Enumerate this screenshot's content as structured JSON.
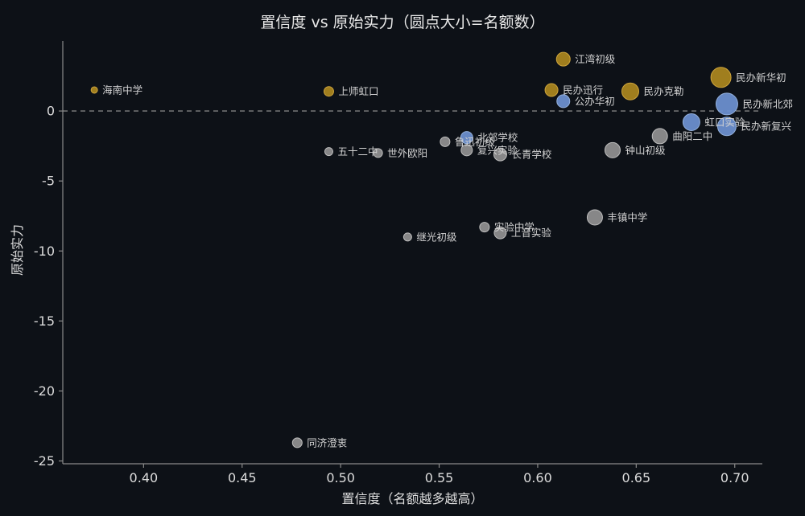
{
  "chart_data": {
    "type": "scatter",
    "title": "置信度 vs 原始实力（圆点大小=名额数）",
    "xlabel": "置信度（名额越多越高）",
    "ylabel": "原始实力",
    "xlim": [
      0.359,
      0.714
    ],
    "ylim": [
      -25.2,
      5.0
    ],
    "xticks": [
      0.4,
      0.45,
      0.5,
      0.55,
      0.6,
      0.65,
      0.7
    ],
    "xtick_labels": [
      "0.40",
      "0.45",
      "0.50",
      "0.55",
      "0.60",
      "0.65",
      "0.70"
    ],
    "yticks": [
      0,
      -5,
      -10,
      -15,
      -20,
      -25
    ],
    "ytick_labels": [
      "0",
      "-5",
      "-10",
      "-15",
      "-20",
      "-25"
    ],
    "grid": false,
    "hline": {
      "y": 0,
      "style": "dashed"
    },
    "legend": "none",
    "size_encoding": "circle size = quota count (名额数)",
    "colors": {
      "background": "#0d1117",
      "axis": "#8a8a8a",
      "tick_text": "#dcdcdc",
      "title_text": "#e9e9e9",
      "point_label_text": "#d2d2d2",
      "dashed_line": "#9a9a9a",
      "gold": "#a9851f",
      "gold_edge": "#cfa53c",
      "blue": "#6b8fce",
      "blue_edge": "#93b0dc",
      "gray": "#8e8e8e",
      "gray_edge": "#bdbdbd"
    },
    "points": [
      {
        "name": "海南中学",
        "x": 0.375,
        "y": 1.5,
        "r": 4,
        "color": "gold"
      },
      {
        "name": "上师虹口",
        "x": 0.494,
        "y": 1.4,
        "r": 6,
        "color": "gold"
      },
      {
        "name": "江湾初级",
        "x": 0.613,
        "y": 3.7,
        "r": 8.5,
        "color": "gold"
      },
      {
        "name": "民办迅行",
        "x": 0.607,
        "y": 1.5,
        "r": 8,
        "color": "gold"
      },
      {
        "name": "公办华初",
        "x": 0.613,
        "y": 0.7,
        "r": 8,
        "color": "blue"
      },
      {
        "name": "民办克勒",
        "x": 0.647,
        "y": 1.4,
        "r": 10.5,
        "color": "gold"
      },
      {
        "name": "民办新华初",
        "x": 0.693,
        "y": 2.4,
        "r": 12.5,
        "color": "gold"
      },
      {
        "name": "民办新北郊",
        "x": 0.696,
        "y": 0.5,
        "r": 13.5,
        "color": "blue"
      },
      {
        "name": "虹口实验",
        "x": 0.678,
        "y": -0.8,
        "r": 10.5,
        "color": "blue"
      },
      {
        "name": "民办新复兴",
        "x": 0.696,
        "y": -1.1,
        "r": 11.5,
        "color": "blue"
      },
      {
        "name": "曲阳二中",
        "x": 0.662,
        "y": -1.8,
        "r": 9.5,
        "color": "gray"
      },
      {
        "name": "钟山初级",
        "x": 0.638,
        "y": -2.8,
        "r": 9.5,
        "color": "gray"
      },
      {
        "name": "五十二中",
        "x": 0.494,
        "y": -2.9,
        "r": 5,
        "color": "gray"
      },
      {
        "name": "世外欧阳",
        "x": 0.519,
        "y": -3.0,
        "r": 5.5,
        "color": "gray"
      },
      {
        "name": "鲁迅初级",
        "x": 0.553,
        "y": -2.2,
        "r": 6,
        "color": "gray"
      },
      {
        "name": "北郊学校",
        "x": 0.564,
        "y": -1.9,
        "r": 7.5,
        "color": "blue"
      },
      {
        "name": "复兴实验",
        "x": 0.564,
        "y": -2.8,
        "r": 7,
        "color": "gray"
      },
      {
        "name": "长青学校",
        "x": 0.581,
        "y": -3.1,
        "r": 8,
        "color": "gray"
      },
      {
        "name": "丰镇中学",
        "x": 0.629,
        "y": -7.6,
        "r": 9.5,
        "color": "gray"
      },
      {
        "name": "实验中学",
        "x": 0.573,
        "y": -8.3,
        "r": 6,
        "color": "gray"
      },
      {
        "name": "上音实验",
        "x": 0.581,
        "y": -8.7,
        "r": 7.5,
        "color": "gray"
      },
      {
        "name": "继光初级",
        "x": 0.534,
        "y": -9.0,
        "r": 5,
        "color": "gray"
      },
      {
        "name": "同济澄衷",
        "x": 0.478,
        "y": -23.7,
        "r": 6,
        "color": "gray"
      }
    ]
  }
}
